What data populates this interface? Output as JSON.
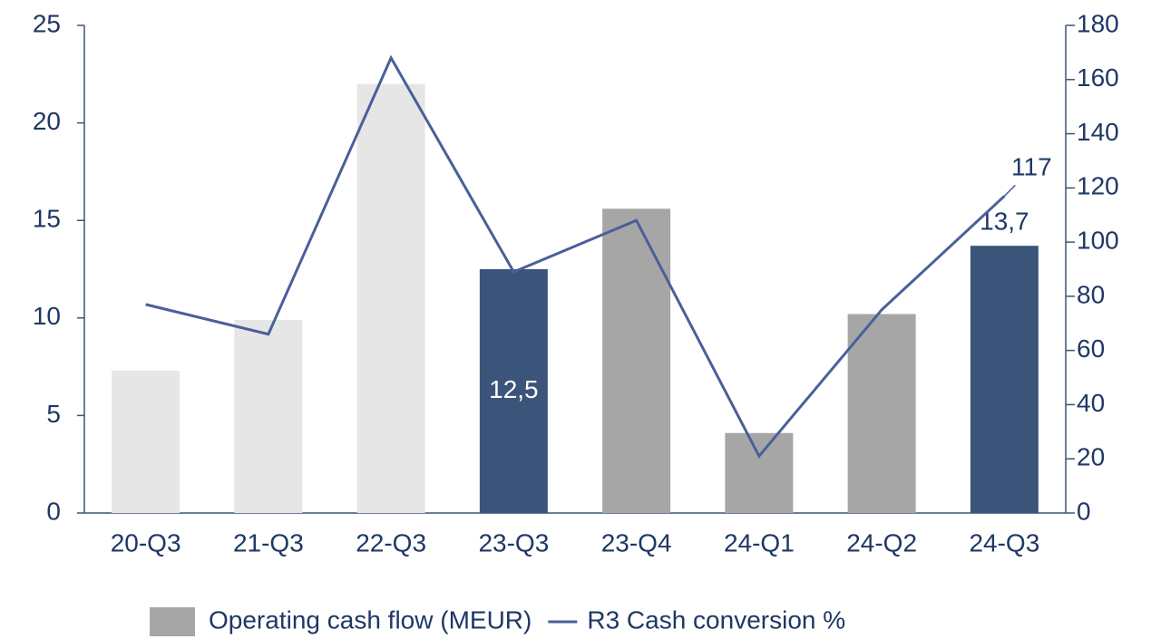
{
  "chart_data": {
    "type": "bar",
    "categories": [
      "20-Q3",
      "21-Q3",
      "22-Q3",
      "23-Q3",
      "23-Q4",
      "24-Q1",
      "24-Q2",
      "24-Q3"
    ],
    "series": [
      {
        "name": "Operating cash flow (MEUR)",
        "color": "#a6a6a6",
        "colors": [
          "#e6e6e6",
          "#e6e6e6",
          "#e6e6e6",
          "#3b5479",
          "#a6a6a6",
          "#a6a6a6",
          "#a6a6a6",
          "#3b5479"
        ],
        "values": [
          7.3,
          9.9,
          22.0,
          12.5,
          15.6,
          4.1,
          10.2,
          13.7
        ],
        "value_labels": [
          null,
          null,
          null,
          "12,5",
          null,
          null,
          null,
          "13,7"
        ]
      },
      {
        "name": "R3 Cash conversion %",
        "type": "line",
        "axis": "y2",
        "color": "#4a5f9a",
        "values": [
          77,
          66,
          168,
          89,
          108,
          21,
          75,
          117
        ],
        "value_labels": [
          null,
          null,
          null,
          null,
          null,
          null,
          null,
          "117"
        ]
      }
    ],
    "ylim": [
      0,
      25
    ],
    "yticks": [
      0,
      5,
      10,
      15,
      20,
      25
    ],
    "y2lim": [
      0,
      180
    ],
    "y2ticks": [
      0,
      20,
      40,
      60,
      80,
      100,
      120,
      140,
      160,
      180
    ],
    "legend": "bottom"
  }
}
